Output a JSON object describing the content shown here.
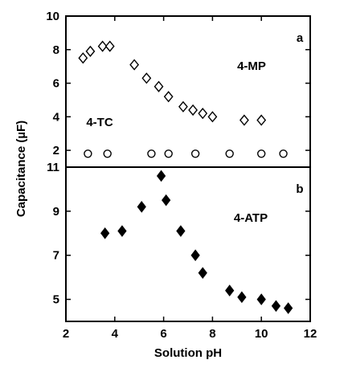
{
  "chart_data": {
    "type": "scatter",
    "xlabel": "Solution pH",
    "ylabel": "Capacitance (µF)",
    "xlim": [
      2,
      12
    ],
    "x_ticks": [
      2,
      4,
      6,
      8,
      10,
      12
    ],
    "x_tick_labels": [
      "2",
      "4",
      "6",
      "8",
      "10",
      "12"
    ],
    "grid": false,
    "panels": [
      {
        "panel_label": "a",
        "ylim": [
          1,
          10
        ],
        "y_ticks": [
          2,
          4,
          6,
          8,
          10
        ],
        "y_tick_labels": [
          "2",
          "4",
          "6",
          "8",
          "10"
        ],
        "series": [
          {
            "name": "4-MP",
            "marker": "open-diamond",
            "x": [
              2.7,
              3.0,
              3.5,
              3.8,
              4.8,
              5.3,
              5.8,
              6.2,
              6.8,
              7.2,
              7.6,
              8.0,
              9.3,
              10.0
            ],
            "y": [
              7.5,
              7.9,
              8.2,
              8.2,
              7.1,
              6.3,
              5.8,
              5.2,
              4.6,
              4.4,
              4.2,
              4.0,
              3.8,
              3.8
            ]
          },
          {
            "name": "4-TC",
            "marker": "open-circle",
            "x": [
              2.9,
              3.7,
              5.5,
              6.2,
              7.3,
              8.7,
              10.0,
              10.9
            ],
            "y": [
              1.8,
              1.8,
              1.8,
              1.8,
              1.8,
              1.8,
              1.8,
              1.8
            ]
          }
        ]
      },
      {
        "panel_label": "b",
        "ylim": [
          4,
          11
        ],
        "y_ticks": [
          5,
          7,
          9,
          11
        ],
        "y_tick_labels": [
          "5",
          "7",
          "9",
          "11"
        ],
        "series": [
          {
            "name": "4-ATP",
            "marker": "filled-diamond",
            "x": [
              3.6,
              4.3,
              5.1,
              5.9,
              6.1,
              6.7,
              7.3,
              7.6,
              8.7,
              9.2,
              10.0,
              10.6,
              11.1
            ],
            "y": [
              8.0,
              8.1,
              9.2,
              10.6,
              9.5,
              8.1,
              7.0,
              6.2,
              5.4,
              5.1,
              5.0,
              4.7,
              4.6
            ]
          }
        ]
      }
    ]
  }
}
